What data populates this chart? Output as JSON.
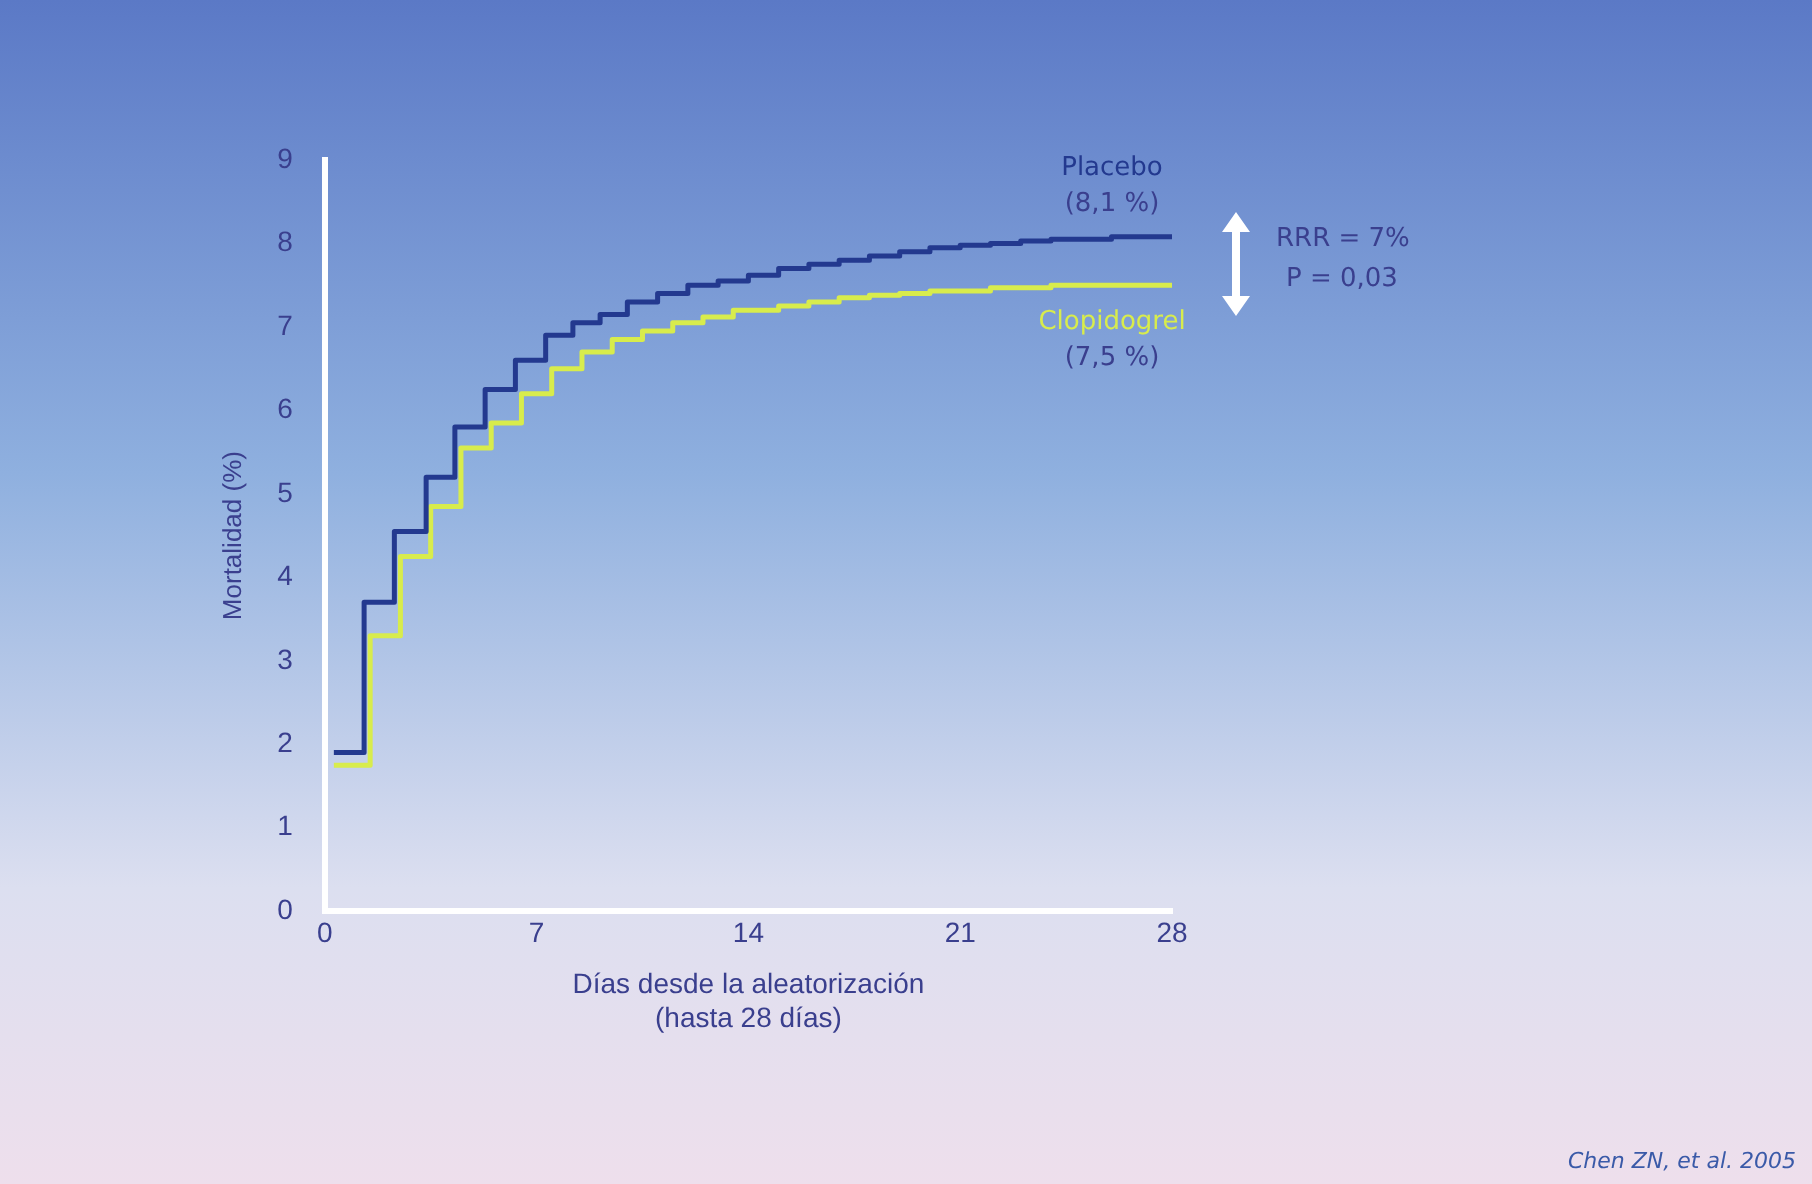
{
  "chart_data": {
    "type": "step",
    "xlabel": "Días desde la aleatorización\n(hasta 28 días)",
    "ylabel": "Mortalidad (%)",
    "xlim": [
      0,
      28
    ],
    "xticks": [
      0,
      7,
      14,
      21,
      28
    ],
    "ylim": [
      0,
      9
    ],
    "yticks": [
      0,
      1,
      2,
      3,
      4,
      5,
      6,
      7,
      8,
      9
    ],
    "grid": false,
    "legend": false,
    "series": [
      {
        "name": "Placebo",
        "color": "#23398f",
        "x": [
          0.3,
          1.3,
          2.3,
          3.35,
          4.3,
          5.3,
          6.3,
          7.3,
          8.2,
          9.1,
          10,
          11,
          12,
          13,
          14,
          15,
          16,
          17,
          18,
          19,
          20,
          21,
          22,
          23,
          24,
          26,
          28
        ],
        "values": [
          1.9,
          3.7,
          4.55,
          5.2,
          5.8,
          6.25,
          6.6,
          6.9,
          7.05,
          7.15,
          7.3,
          7.4,
          7.5,
          7.55,
          7.62,
          7.7,
          7.75,
          7.8,
          7.85,
          7.9,
          7.95,
          7.98,
          8.0,
          8.03,
          8.05,
          8.08,
          8.1
        ]
      },
      {
        "name": "Clopidogrel",
        "color": "#d8ec4c",
        "x": [
          0.3,
          1.5,
          2.5,
          3.5,
          4.5,
          5.5,
          6.5,
          7.5,
          8.5,
          9.5,
          10.5,
          11.5,
          12.5,
          13.5,
          15,
          16,
          17,
          18,
          19,
          20,
          22,
          24,
          28
        ],
        "values": [
          1.75,
          3.3,
          4.25,
          4.85,
          5.55,
          5.85,
          6.2,
          6.5,
          6.7,
          6.85,
          6.95,
          7.05,
          7.12,
          7.2,
          7.25,
          7.3,
          7.35,
          7.38,
          7.4,
          7.43,
          7.47,
          7.5,
          7.5
        ]
      }
    ],
    "annotations": [
      "(8,1 %)",
      "(7,5 %)",
      "RRR = 7%",
      "P = 0,03",
      "Chen ZN, et al. 2005"
    ]
  }
}
